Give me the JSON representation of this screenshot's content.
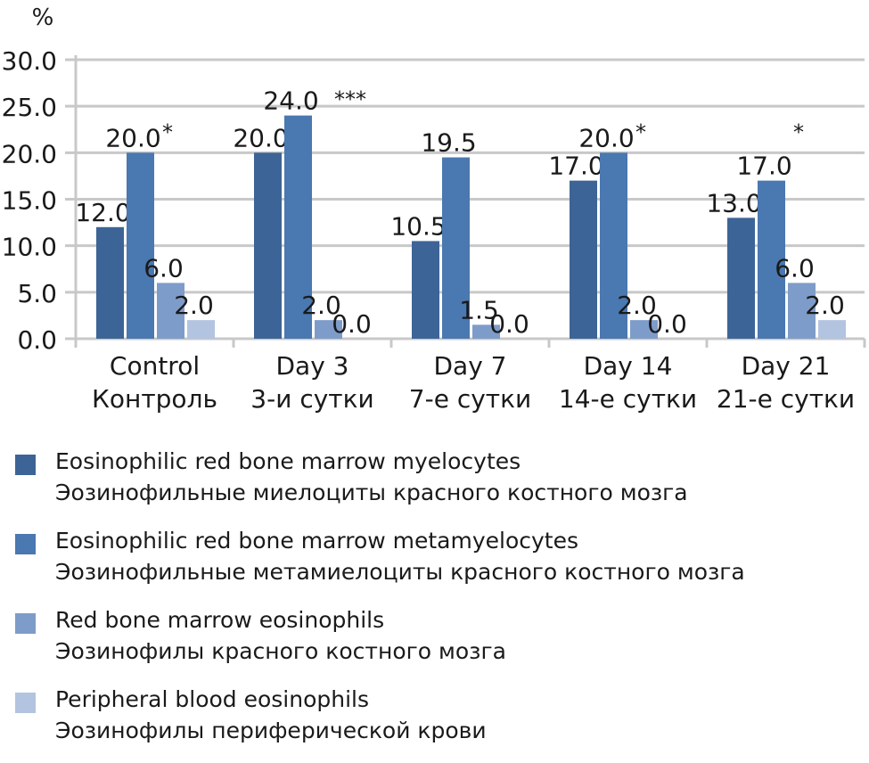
{
  "chart_data": {
    "type": "bar",
    "ylabel": "%",
    "ylim": [
      0,
      30
    ],
    "yticks": [
      "0.0",
      "5.0",
      "10.0",
      "15.0",
      "20.0",
      "25.0",
      "30.0"
    ],
    "grid": true,
    "legend_position": "bottom",
    "categories": [
      {
        "en": "Control",
        "ru": "Контроль"
      },
      {
        "en": "Day 3",
        "ru": "3-и сутки"
      },
      {
        "en": "Day 7",
        "ru": "7-е сутки"
      },
      {
        "en": "Day 14",
        "ru": "14-е сутки"
      },
      {
        "en": "Day 21",
        "ru": "21-е сутки"
      }
    ],
    "series": [
      {
        "name": "Eosinophilic red bone marrow myelocytes",
        "name_ru": "Эозинофильные миелоциты красного костного мозга",
        "color": "#3d6496",
        "values": [
          12.0,
          20.0,
          10.5,
          17.0,
          13.0
        ],
        "labels": [
          "12.0",
          "20.0",
          "10.5",
          "17.0",
          "13.0"
        ]
      },
      {
        "name": "Eosinophilic red bone marrow metamyelocytes",
        "name_ru": "Эозинофильные метамиелоциты красного костного мозга",
        "color": "#4a78b0",
        "values": [
          20.0,
          24.0,
          19.5,
          20.0,
          17.0
        ],
        "labels": [
          "20.0",
          "24.0",
          "19.5",
          "20.0",
          "17.0"
        ]
      },
      {
        "name": "Red bone marrow eosinophils",
        "name_ru": "Эозинофилы красного костного мозга",
        "color": "#7e9cc9",
        "values": [
          6.0,
          2.0,
          1.5,
          2.0,
          6.0
        ],
        "labels": [
          "6.0",
          "2.0",
          "1.5",
          "2.0",
          "6.0"
        ]
      },
      {
        "name": "Peripheral blood eosinophils",
        "name_ru": "Эозинофилы периферической крови",
        "color": "#b3c4e0",
        "values": [
          2.0,
          0.0,
          0.0,
          0.0,
          2.0
        ],
        "labels": [
          "2.0",
          "0.0",
          "0.0",
          "0.0",
          "2.0"
        ]
      }
    ],
    "annotations": [
      "*",
      "***",
      "",
      "*",
      "*"
    ]
  }
}
